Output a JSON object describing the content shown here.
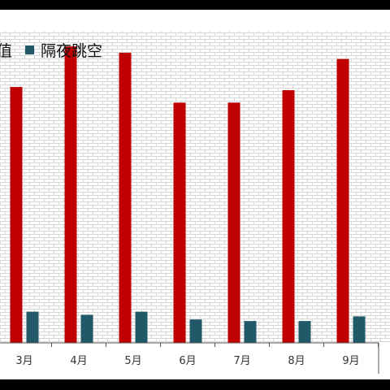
{
  "colors": {
    "frame": "#000000",
    "plot_bg": "#ffffff",
    "pattern_line": "#d6d6d6",
    "series_0": "#c00000",
    "series_1": "#215968"
  },
  "chart_data": {
    "type": "bar",
    "categories": [
      "3月",
      "4月",
      "5月",
      "6月",
      "7月",
      "8月",
      "9月"
    ],
    "series": [
      {
        "name": "值",
        "values": [
          82,
          95,
          93,
          77,
          77,
          81,
          91
        ]
      },
      {
        "name": "隔夜跳空",
        "values": [
          10,
          9,
          10,
          7.5,
          7,
          7,
          8.5
        ]
      }
    ],
    "legend_position": "top-left",
    "grid": false,
    "ylim": [
      0,
      100
    ]
  }
}
